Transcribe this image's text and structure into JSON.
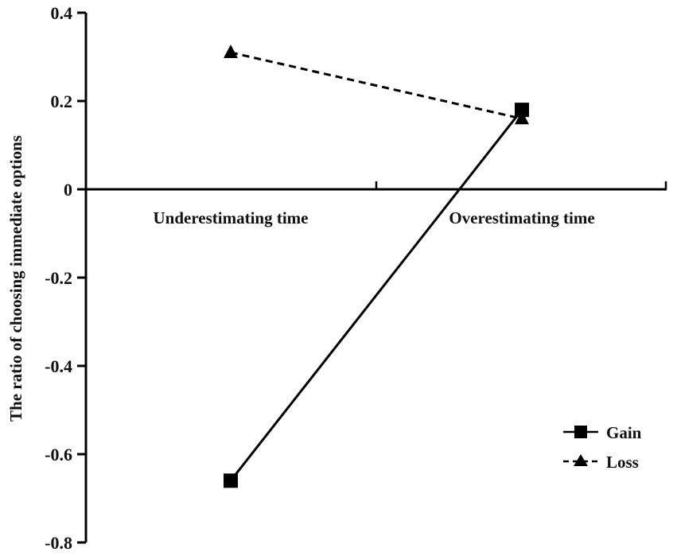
{
  "chart_data": {
    "type": "line",
    "title": "",
    "xlabel": "",
    "ylabel": "The ratio of choosing immediate options",
    "categories": [
      "Underestimating time",
      "Overestimating time"
    ],
    "series": [
      {
        "name": "Gain",
        "values": [
          -0.66,
          0.18
        ],
        "line_style": "solid",
        "marker": "square",
        "color": "#000000"
      },
      {
        "name": "Loss",
        "values": [
          0.31,
          0.16
        ],
        "line_style": "dashed",
        "marker": "triangle",
        "color": "#000000"
      }
    ],
    "ylim": [
      -0.8,
      0.4
    ],
    "yticks": [
      0.4,
      0.2,
      0,
      -0.2,
      -0.4,
      -0.6,
      -0.8
    ],
    "ytick_labels": [
      "0.4",
      "0.2",
      "0",
      "-0.2",
      "-0.4",
      "-0.6",
      "-0.8"
    ],
    "grid": false,
    "legend_position": "lower right"
  },
  "legend": {
    "items": [
      {
        "label": "Gain"
      },
      {
        "label": "Loss"
      }
    ]
  }
}
